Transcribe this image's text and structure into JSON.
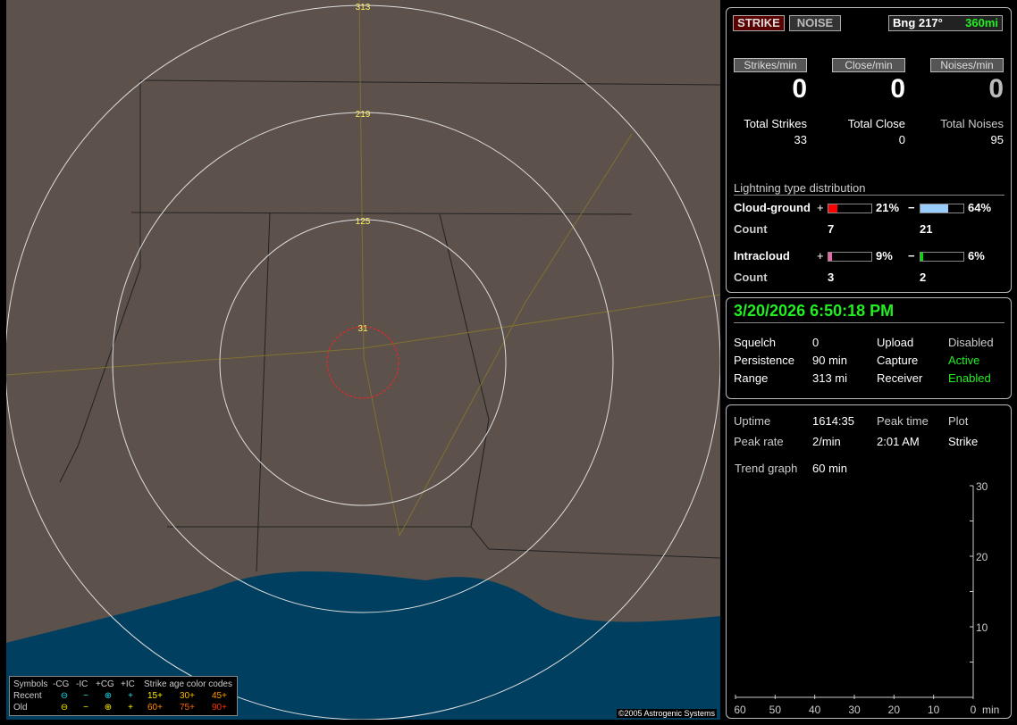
{
  "map": {
    "range_labels": [
      "31",
      "125",
      "219",
      "313"
    ],
    "copyright": "©2005 Astrogenic Systems",
    "colors": {
      "land": "#5c514b",
      "water": "#003f5f",
      "range_rings": "#dddddd",
      "close_ring": "#ff2020",
      "roads": "#8a7a2a"
    }
  },
  "legend": {
    "symbols_label": "Symbols",
    "headers": [
      "-CG",
      "-IC",
      "+CG",
      "+IC"
    ],
    "age_title": "Strike age color codes",
    "recent": {
      "label": "Recent",
      "symbols": [
        "⊖",
        "−",
        "⊕",
        "+"
      ],
      "color": "#22ddee",
      "ages": [
        "15+",
        "30+",
        "45+"
      ],
      "age_colors": [
        "#ffee00",
        "#ffbb00",
        "#ff9900"
      ]
    },
    "old": {
      "label": "Old",
      "symbols": [
        "⊖",
        "−",
        "⊕",
        "+"
      ],
      "color": "#ffee00",
      "ages": [
        "60+",
        "75+",
        "90+"
      ],
      "age_colors": [
        "#ff8800",
        "#ff6600",
        "#ff3300"
      ]
    }
  },
  "top": {
    "strike_button": "STRIKE",
    "noise_button": "NOISE",
    "bearing": "Bng 217°",
    "distance": "360mi",
    "stats": [
      {
        "header": "Strikes/min",
        "value": "0",
        "total_label": "Total Strikes",
        "total": "33"
      },
      {
        "header": "Close/min",
        "value": "0",
        "total_label": "Total Close",
        "total": "0"
      },
      {
        "header": "Noises/min",
        "value": "0",
        "total_label": "Total Noises",
        "total": "95"
      }
    ],
    "dist_title": "Lightning type distribution",
    "cloud_ground": {
      "label": "Cloud-ground",
      "pos_pct": 21,
      "pos_text": "21%",
      "neg_pct": 64,
      "neg_text": "64%",
      "pos_count": "7",
      "neg_count": "21",
      "pos_color": "#ff0000",
      "neg_color": "#99ccff"
    },
    "intracloud": {
      "label": "Intracloud",
      "pos_pct": 9,
      "pos_text": "9%",
      "neg_pct": 6,
      "neg_text": "6%",
      "pos_count": "3",
      "neg_count": "2",
      "pos_color": "#ee66aa",
      "neg_color": "#00dd00"
    },
    "count_label": "Count",
    "plus": "+",
    "minus": "−"
  },
  "status": {
    "datetime": "3/20/2026 6:50:18 PM",
    "rows": [
      [
        "Squelch",
        "0",
        "Upload",
        "Disabled"
      ],
      [
        "Persistence",
        "90 min",
        "Capture",
        "Active"
      ],
      [
        "Range",
        "313 mi",
        "Receiver",
        "Enabled"
      ]
    ]
  },
  "trend": {
    "uptime_label": "Uptime",
    "uptime": "1614:35",
    "peak_time_label": "Peak time",
    "plot_label": "Plot",
    "peak_rate_label": "Peak rate",
    "peak_rate": "2/min",
    "peak_time": "2:01 AM",
    "plot": "Strike",
    "trend_label": "Trend graph",
    "trend_value": "60 min"
  },
  "chart_data": {
    "type": "line",
    "x_ticks": [
      "60",
      "50",
      "40",
      "30",
      "20",
      "10",
      "0"
    ],
    "x_unit": "min",
    "y_ticks": [
      "10",
      "20",
      "30"
    ],
    "ylim": [
      0,
      30
    ],
    "xlim": [
      60,
      0
    ],
    "series": []
  }
}
